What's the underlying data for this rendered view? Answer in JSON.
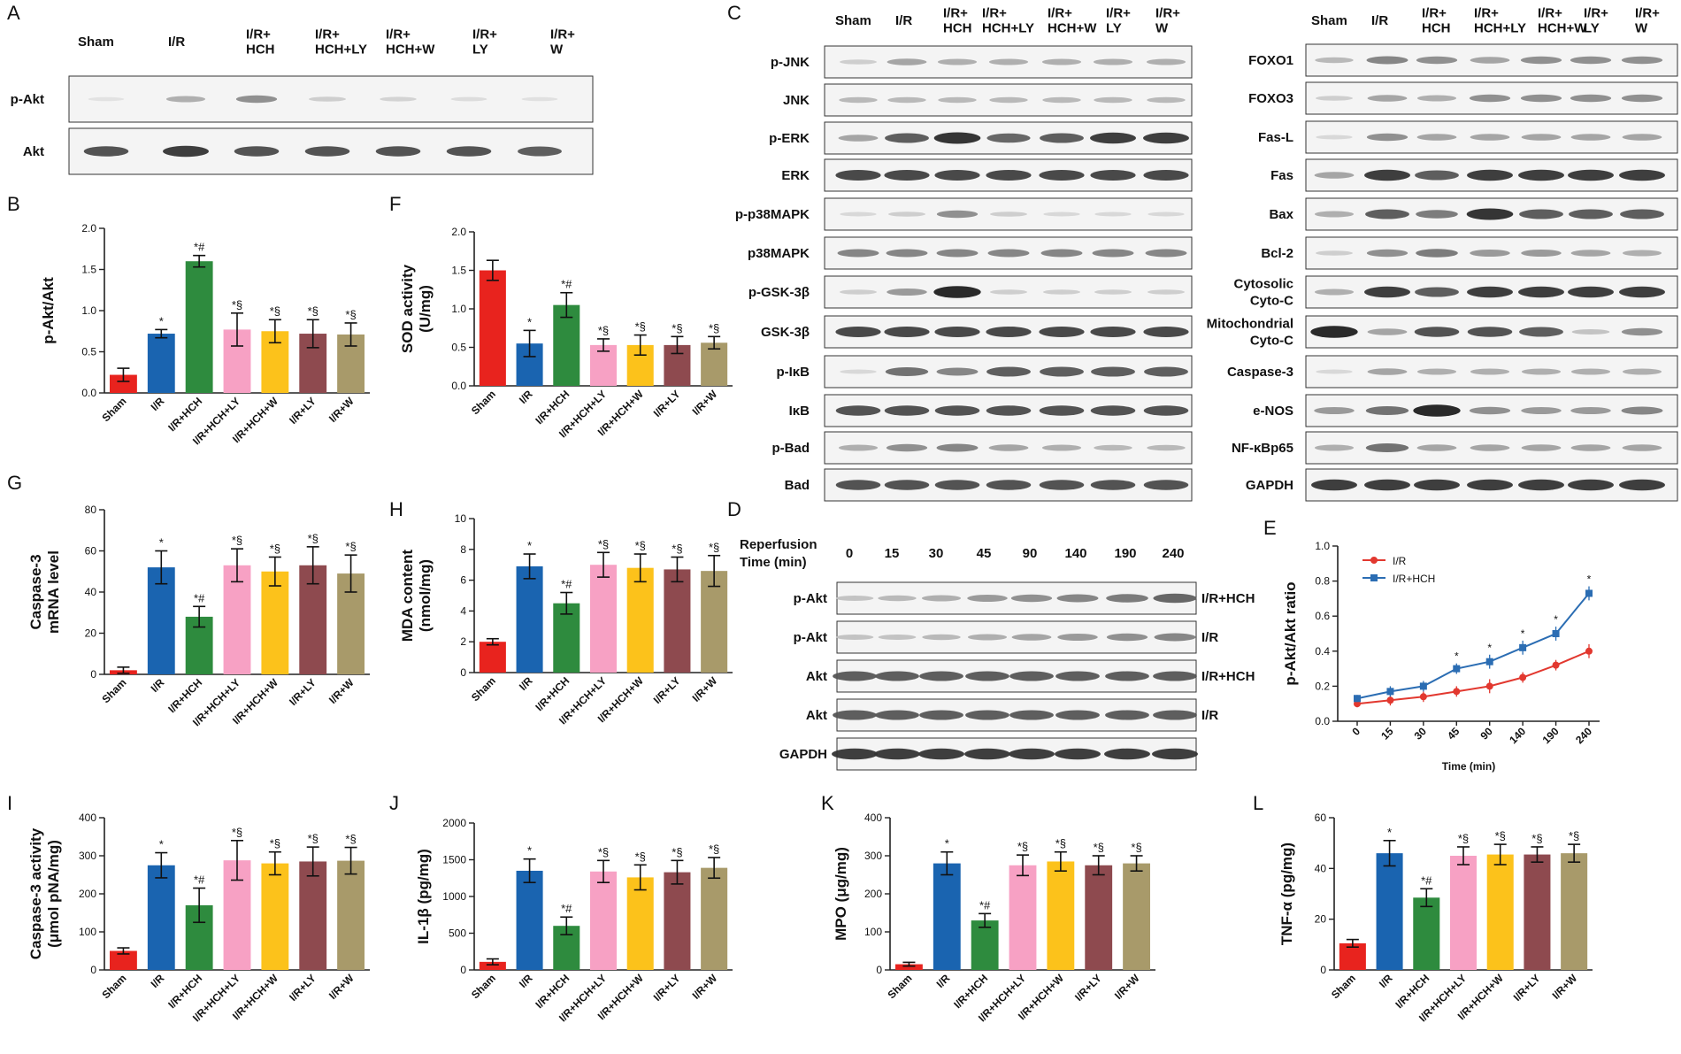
{
  "blots": {
    "A": {
      "letter": "A",
      "lanes": [
        "Sham",
        "I/R",
        "I/R+\nHCH",
        "I/R+\nHCH+LY",
        "I/R+\nHCH+W",
        "I/R+\nLY",
        "I/R+\nW"
      ],
      "rows": [
        {
          "label": "p-Akt",
          "intensity": [
            0.05,
            0.3,
            0.45,
            0.15,
            0.12,
            0.08,
            0.06
          ]
        },
        {
          "label": "Akt",
          "intensity": [
            0.75,
            0.85,
            0.75,
            0.75,
            0.75,
            0.75,
            0.7
          ]
        }
      ]
    },
    "C1": {
      "letter": "C",
      "lanes": [
        "Sham",
        "I/R",
        "I/R+\nHCH",
        "I/R+\nHCH+LY",
        "I/R+\nHCH+W",
        "I/R+\nLY",
        "I/R+\nW"
      ],
      "rows": [
        {
          "label": "p-JNK",
          "intensity": [
            0.15,
            0.35,
            0.3,
            0.3,
            0.3,
            0.3,
            0.3
          ]
        },
        {
          "label": "JNK",
          "intensity": [
            0.25,
            0.25,
            0.25,
            0.25,
            0.25,
            0.25,
            0.25
          ]
        },
        {
          "label": "p-ERK",
          "intensity": [
            0.35,
            0.7,
            0.9,
            0.65,
            0.7,
            0.85,
            0.85
          ]
        },
        {
          "label": "ERK",
          "intensity": [
            0.8,
            0.8,
            0.8,
            0.8,
            0.8,
            0.8,
            0.8
          ]
        },
        {
          "label": "p-p38MAPK",
          "intensity": [
            0.1,
            0.15,
            0.45,
            0.15,
            0.1,
            0.1,
            0.1
          ]
        },
        {
          "label": "p38MAPK",
          "intensity": [
            0.5,
            0.5,
            0.5,
            0.5,
            0.5,
            0.5,
            0.5
          ]
        },
        {
          "label": "p-GSK-3β",
          "intensity": [
            0.15,
            0.4,
            0.95,
            0.15,
            0.15,
            0.15,
            0.15
          ]
        },
        {
          "label": "GSK-3β",
          "intensity": [
            0.8,
            0.8,
            0.8,
            0.8,
            0.8,
            0.8,
            0.8
          ]
        },
        {
          "label": "p-IκB",
          "intensity": [
            0.1,
            0.6,
            0.5,
            0.7,
            0.7,
            0.7,
            0.7
          ]
        },
        {
          "label": "IκB",
          "intensity": [
            0.75,
            0.75,
            0.75,
            0.75,
            0.75,
            0.75,
            0.75
          ]
        },
        {
          "label": "p-Bad",
          "intensity": [
            0.3,
            0.45,
            0.5,
            0.35,
            0.3,
            0.25,
            0.25
          ]
        },
        {
          "label": "Bad",
          "intensity": [
            0.75,
            0.75,
            0.75,
            0.75,
            0.75,
            0.75,
            0.75
          ]
        }
      ]
    },
    "C2": {
      "lanes": [
        "Sham",
        "I/R",
        "I/R+\nHCH",
        "I/R+\nHCH+LY",
        "I/R+\nHCH+W",
        "I/R+\nLY",
        "I/R+\nW"
      ],
      "rows": [
        {
          "label": "FOXO1",
          "intensity": [
            0.25,
            0.5,
            0.45,
            0.35,
            0.45,
            0.45,
            0.45
          ]
        },
        {
          "label": "FOXO3",
          "intensity": [
            0.15,
            0.35,
            0.3,
            0.45,
            0.45,
            0.45,
            0.45
          ]
        },
        {
          "label": "Fas-L",
          "intensity": [
            0.1,
            0.45,
            0.35,
            0.35,
            0.35,
            0.35,
            0.35
          ]
        },
        {
          "label": "Fas",
          "intensity": [
            0.35,
            0.85,
            0.7,
            0.85,
            0.85,
            0.85,
            0.85
          ]
        },
        {
          "label": "Bax",
          "intensity": [
            0.3,
            0.7,
            0.55,
            0.9,
            0.7,
            0.7,
            0.7
          ]
        },
        {
          "label": "Bcl-2",
          "intensity": [
            0.15,
            0.45,
            0.55,
            0.4,
            0.4,
            0.35,
            0.3
          ]
        },
        {
          "label": "Cytosolic\nCyto-C",
          "intensity": [
            0.3,
            0.85,
            0.7,
            0.85,
            0.85,
            0.85,
            0.85
          ]
        },
        {
          "label": "Mitochondrial\nCyto-C",
          "intensity": [
            0.95,
            0.35,
            0.75,
            0.75,
            0.7,
            0.2,
            0.45
          ]
        },
        {
          "label": "Caspase-3",
          "intensity": [
            0.1,
            0.35,
            0.3,
            0.3,
            0.3,
            0.3,
            0.3
          ]
        },
        {
          "label": "e-NOS",
          "intensity": [
            0.4,
            0.6,
            0.95,
            0.45,
            0.4,
            0.4,
            0.5
          ]
        },
        {
          "label": "NF-κBp65",
          "intensity": [
            0.3,
            0.6,
            0.35,
            0.35,
            0.35,
            0.35,
            0.35
          ]
        },
        {
          "label": "GAPDH",
          "intensity": [
            0.85,
            0.85,
            0.85,
            0.85,
            0.85,
            0.85,
            0.85
          ]
        }
      ]
    },
    "D": {
      "letter": "D",
      "header": "Reperfusion\nTime (min)",
      "lanes": [
        "0",
        "15",
        "30",
        "45",
        "90",
        "140",
        "190",
        "240"
      ],
      "rows": [
        {
          "label": "p-Akt",
          "right": "I/R+HCH",
          "intensity": [
            0.2,
            0.25,
            0.3,
            0.4,
            0.45,
            0.5,
            0.55,
            0.65
          ]
        },
        {
          "label": "p-Akt",
          "right": "I/R",
          "intensity": [
            0.2,
            0.2,
            0.25,
            0.3,
            0.35,
            0.4,
            0.45,
            0.5
          ]
        },
        {
          "label": "Akt",
          "right": "I/R+HCH",
          "intensity": [
            0.7,
            0.7,
            0.7,
            0.7,
            0.7,
            0.7,
            0.7,
            0.7
          ]
        },
        {
          "label": "Akt",
          "right": "I/R",
          "intensity": [
            0.7,
            0.7,
            0.7,
            0.7,
            0.7,
            0.7,
            0.7,
            0.7
          ]
        },
        {
          "label": "GAPDH",
          "right": "",
          "intensity": [
            0.85,
            0.85,
            0.85,
            0.85,
            0.85,
            0.85,
            0.85,
            0.85
          ]
        }
      ]
    }
  },
  "chart_data": [
    {
      "panel": "B",
      "type": "bar",
      "ylabel": "p-Akt/Akt",
      "ylim": [
        0,
        2.0
      ],
      "yticks": [
        "0.0",
        "0.5",
        "1.0",
        "1.5",
        "2.0"
      ],
      "categories": [
        "Sham",
        "I/R",
        "I/R+HCH",
        "I/R+HCH+LY",
        "I/R+HCH+W",
        "I/R+LY",
        "I/R+W"
      ],
      "values": [
        0.22,
        0.72,
        1.6,
        0.77,
        0.75,
        0.72,
        0.71
      ],
      "errors": [
        0.08,
        0.05,
        0.07,
        0.2,
        0.14,
        0.17,
        0.14
      ],
      "annotations": [
        "",
        "*",
        "*#",
        "*§",
        "*§",
        "*§",
        "*§"
      ]
    },
    {
      "panel": "F",
      "type": "bar",
      "ylabel": "SOD activity\n(U/mg)",
      "ylim": [
        0,
        2.0
      ],
      "yticks": [
        "0.0",
        "0.5",
        "1.0",
        "1.5",
        "2.0"
      ],
      "categories": [
        "Sham",
        "I/R",
        "I/R+HCH",
        "I/R+HCH+LY",
        "I/R+HCH+W",
        "I/R+LY",
        "I/R+W"
      ],
      "values": [
        1.5,
        0.55,
        1.05,
        0.53,
        0.53,
        0.53,
        0.56
      ],
      "errors": [
        0.13,
        0.17,
        0.16,
        0.08,
        0.13,
        0.11,
        0.08
      ],
      "annotations": [
        "",
        "*",
        "*#",
        "*§",
        "*§",
        "*§",
        "*§"
      ]
    },
    {
      "panel": "G",
      "type": "bar",
      "ylabel": "Caspase-3\nmRNA level",
      "ylim": [
        0,
        80
      ],
      "yticks": [
        "0",
        "20",
        "40",
        "60",
        "80"
      ],
      "categories": [
        "Sham",
        "I/R",
        "I/R+HCH",
        "I/R+HCH+LY",
        "I/R+HCH+W",
        "I/R+LY",
        "I/R+W"
      ],
      "values": [
        2,
        52,
        28,
        53,
        50,
        53,
        49
      ],
      "errors": [
        1.5,
        8,
        5,
        8,
        7,
        9,
        9
      ],
      "annotations": [
        "",
        "*",
        "*#",
        "*§",
        "*§",
        "*§",
        "*§"
      ]
    },
    {
      "panel": "H",
      "type": "bar",
      "ylabel": "MDA content\n(nmol/mg)",
      "ylim": [
        0,
        10
      ],
      "yticks": [
        "0",
        "2",
        "4",
        "6",
        "8",
        "10"
      ],
      "categories": [
        "Sham",
        "I/R",
        "I/R+HCH",
        "I/R+HCH+LY",
        "I/R+HCH+W",
        "I/R+LY",
        "I/R+W"
      ],
      "values": [
        2.0,
        6.9,
        4.5,
        7.0,
        6.8,
        6.7,
        6.6
      ],
      "errors": [
        0.2,
        0.8,
        0.7,
        0.8,
        0.9,
        0.8,
        1.0
      ],
      "annotations": [
        "",
        "*",
        "*#",
        "*§",
        "*§",
        "*§",
        "*§"
      ]
    },
    {
      "panel": "E",
      "type": "line",
      "ylabel": "p-Akt/Akt ratio",
      "xlabel": "Time (min)",
      "ylim": [
        0,
        1.0
      ],
      "yticks": [
        "0.0",
        "0.2",
        "0.4",
        "0.6",
        "0.8",
        "1.0"
      ],
      "x": [
        "0",
        "15",
        "30",
        "45",
        "90",
        "140",
        "190",
        "240"
      ],
      "series": [
        {
          "name": "I/R",
          "color": "#e2382f",
          "values": [
            0.1,
            0.12,
            0.14,
            0.17,
            0.2,
            0.25,
            0.32,
            0.4
          ],
          "errors": [
            0.02,
            0.03,
            0.03,
            0.03,
            0.04,
            0.03,
            0.03,
            0.04
          ]
        },
        {
          "name": "I/R+HCH",
          "color": "#2b6db3",
          "values": [
            0.13,
            0.17,
            0.2,
            0.3,
            0.34,
            0.42,
            0.5,
            0.73
          ],
          "errors": [
            0.02,
            0.03,
            0.03,
            0.03,
            0.04,
            0.04,
            0.04,
            0.04
          ]
        }
      ],
      "annotations": [
        "",
        "",
        "",
        "*",
        "*",
        "*",
        "*",
        "*"
      ]
    },
    {
      "panel": "I",
      "type": "bar",
      "ylabel": "Caspase-3 activity\n(μmol pNA/mg)",
      "ylim": [
        0,
        400
      ],
      "yticks": [
        "0",
        "100",
        "200",
        "300",
        "400"
      ],
      "categories": [
        "Sham",
        "I/R",
        "I/R+HCH",
        "I/R+HCH+LY",
        "I/R+HCH+W",
        "I/R+LY",
        "I/R+W"
      ],
      "values": [
        50,
        275,
        170,
        288,
        280,
        285,
        287
      ],
      "errors": [
        8,
        33,
        45,
        52,
        30,
        38,
        35
      ],
      "annotations": [
        "",
        "*",
        "*#",
        "*§",
        "*§",
        "*§",
        "*§"
      ]
    },
    {
      "panel": "J",
      "type": "bar",
      "ylabel": "IL-1β (pg/mg)",
      "ylim": [
        0,
        2000
      ],
      "yticks": [
        "0",
        "500",
        "1000",
        "1500",
        "2000"
      ],
      "categories": [
        "Sham",
        "I/R",
        "I/R+HCH",
        "I/R+HCH+LY",
        "I/R+HCH+W",
        "I/R+LY",
        "I/R+W"
      ],
      "values": [
        110,
        1350,
        600,
        1340,
        1260,
        1330,
        1390
      ],
      "errors": [
        40,
        160,
        120,
        150,
        170,
        160,
        140
      ],
      "annotations": [
        "",
        "*",
        "*#",
        "*§",
        "*§",
        "*§",
        "*§"
      ]
    },
    {
      "panel": "K",
      "type": "bar",
      "ylabel": "MPO (μg/mg)",
      "ylim": [
        0,
        400
      ],
      "yticks": [
        "0",
        "100",
        "200",
        "300",
        "400"
      ],
      "categories": [
        "Sham",
        "I/R",
        "I/R+HCH",
        "I/R+HCH+LY",
        "I/R+HCH+W",
        "I/R+LY",
        "I/R+W"
      ],
      "values": [
        15,
        280,
        130,
        275,
        285,
        275,
        280
      ],
      "errors": [
        5,
        30,
        18,
        27,
        25,
        25,
        20
      ],
      "annotations": [
        "",
        "*",
        "*#",
        "*§",
        "*§",
        "*§",
        "*§"
      ]
    },
    {
      "panel": "L",
      "type": "bar",
      "ylabel": "TNF-α (pg/mg)",
      "ylim": [
        0,
        60
      ],
      "yticks": [
        "0",
        "20",
        "40",
        "60"
      ],
      "categories": [
        "Sham",
        "I/R",
        "I/R+HCH",
        "I/R+HCH+LY",
        "I/R+HCH+W",
        "I/R+LY",
        "I/R+W"
      ],
      "values": [
        10.5,
        46,
        28.5,
        45,
        45.5,
        45.5,
        46
      ],
      "errors": [
        1.5,
        5,
        3.5,
        3.5,
        4,
        3,
        3.5
      ],
      "annotations": [
        "",
        "*",
        "*#",
        "*§",
        "*§",
        "*§",
        "*§"
      ]
    }
  ],
  "colors": {
    "bars": [
      "#e8231e",
      "#1a64b0",
      "#2e8b3e",
      "#f7a1c4",
      "#fcc21b",
      "#8e4a4f",
      "#a89a6a"
    ],
    "axis": "#222222"
  }
}
